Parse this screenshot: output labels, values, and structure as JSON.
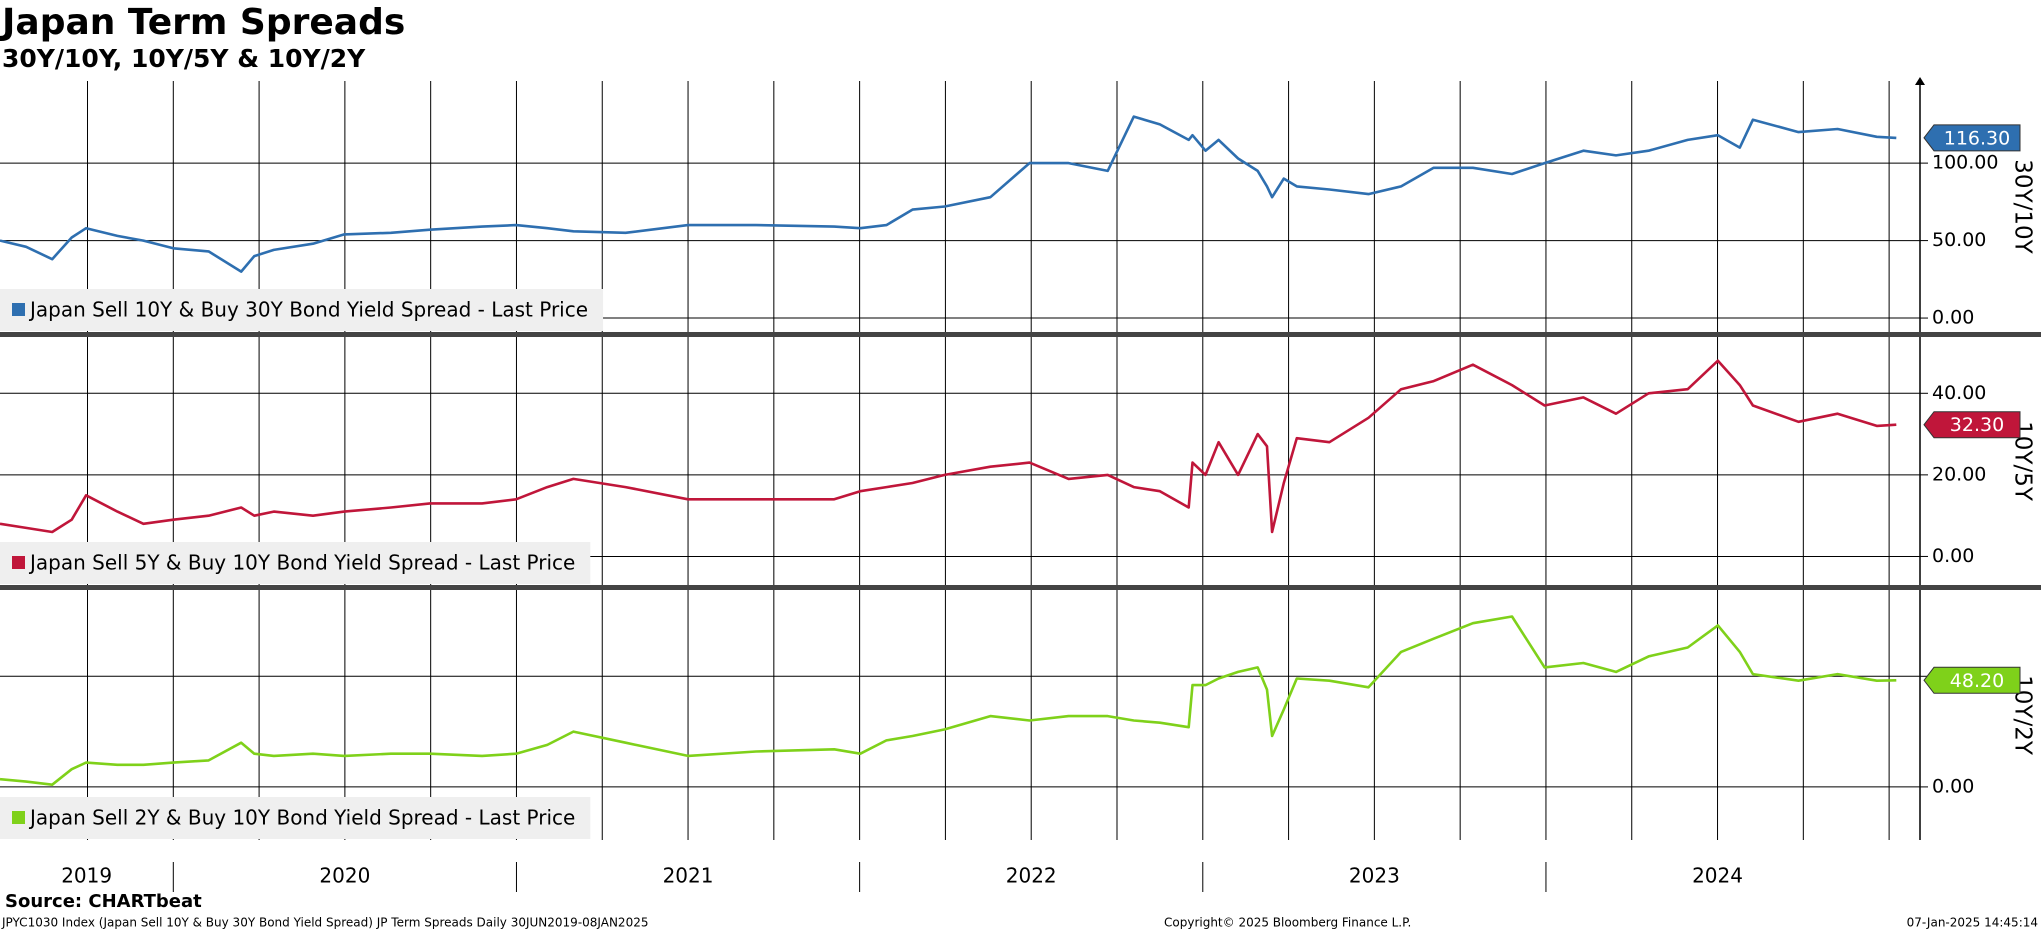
{
  "title": "Japan Term Spreads",
  "subtitle": "30Y/10Y, 10Y/5Y & 10Y/2Y",
  "x_axis": {
    "x": [
      2019.495,
      2019.571,
      2019.647,
      2019.704,
      2019.746,
      2019.837,
      2019.913,
      2020.0,
      2020.103,
      2020.198,
      2020.236,
      2020.293,
      2020.407,
      2020.498,
      2020.634,
      2020.748,
      2020.9,
      2020.999,
      2021.09,
      2021.166,
      2021.318,
      2021.5,
      2021.698,
      2021.926,
      2022.002,
      2022.078,
      2022.154,
      2022.248,
      2022.381,
      2022.495,
      2022.609,
      2022.723,
      2022.799,
      2022.875,
      2022.959,
      2022.97,
      2023.008,
      2023.046,
      2023.103,
      2023.16,
      2023.187,
      2023.202,
      2023.236,
      2023.274,
      2023.369,
      2023.483,
      2023.578,
      2023.673,
      2023.787,
      2023.901,
      2023.996,
      2024.109,
      2024.204,
      2024.299,
      2024.413,
      2024.501,
      2024.565,
      2024.603,
      2024.736,
      2024.85,
      2024.964,
      2025.021
    ],
    "xlim": [
      2019.495,
      2025.09
    ],
    "xticks": [
      {
        "value": 2019,
        "label": "2019"
      },
      {
        "value": 2020,
        "label": "2020"
      },
      {
        "value": 2021,
        "label": "2021"
      },
      {
        "value": 2022,
        "label": "2022"
      },
      {
        "value": 2023,
        "label": "2023"
      },
      {
        "value": 2024,
        "label": "2024"
      }
    ],
    "xgrid": [
      2019.75,
      2020,
      2020.25,
      2020.5,
      2020.75,
      2021,
      2021.25,
      2021.5,
      2021.75,
      2022,
      2022.25,
      2022.5,
      2022.75,
      2023,
      2023.25,
      2023.5,
      2023.75,
      2024,
      2024.25,
      2024.5,
      2024.75,
      2025
    ]
  },
  "chart_data": [
    {
      "type": "line",
      "ylabel": "30Y/10Y",
      "ylim": [
        -9,
        153
      ],
      "yticks": [
        {
          "value": 0,
          "label": "0.00"
        },
        {
          "value": 50,
          "label": "50.00"
        },
        {
          "value": 100,
          "label": "100.00"
        }
      ],
      "last_price": {
        "value": 116.3,
        "label": "116.30"
      },
      "series": [
        {
          "name": "Japan Sell 10Y & Buy 30Y Bond Yield Spread - Last Price",
          "color": "#2e6fb0",
          "values": [
            50,
            46,
            38,
            52,
            58,
            53,
            50,
            45,
            43,
            30,
            40,
            44,
            48,
            54,
            55,
            57,
            59,
            60,
            58,
            56,
            55,
            60,
            60,
            59,
            58,
            60,
            70,
            72,
            78,
            100,
            100,
            95,
            130,
            125,
            115,
            118,
            108,
            115,
            103,
            95,
            85,
            78,
            90,
            85,
            83,
            80,
            85,
            97,
            97,
            93,
            100,
            108,
            105,
            108,
            115,
            118,
            110,
            128,
            120,
            122,
            117,
            116.3
          ]
        }
      ]
    },
    {
      "type": "line",
      "ylabel": "10Y/5Y",
      "ylim": [
        -7,
        53.8
      ],
      "yticks": [
        {
          "value": 0,
          "label": "0.00"
        },
        {
          "value": 20,
          "label": "20.00"
        },
        {
          "value": 40,
          "label": "40.00"
        }
      ],
      "last_price": {
        "value": 32.3,
        "label": "32.30"
      },
      "series": [
        {
          "name": "Japan Sell 5Y & Buy 10Y Bond Yield Spread - Last Price",
          "color": "#c0163a",
          "values": [
            8,
            7,
            6,
            9,
            15,
            11,
            8,
            9,
            10,
            12,
            10,
            11,
            10,
            11,
            12,
            13,
            13,
            14,
            17,
            19,
            17,
            14,
            14,
            14,
            16,
            17,
            18,
            20,
            22,
            23,
            19,
            20,
            17,
            16,
            12,
            23,
            20,
            28,
            20,
            30,
            27,
            6,
            18,
            29,
            28,
            34,
            41,
            43,
            47,
            42,
            37,
            39,
            35,
            40,
            41,
            48,
            42,
            37,
            33,
            35,
            32,
            32.3
          ]
        }
      ]
    },
    {
      "type": "line",
      "ylabel": "10Y/2Y",
      "ylim": [
        -24,
        89
      ],
      "yticks": [
        {
          "value": 0,
          "label": "0.00"
        },
        {
          "value": 50,
          "label": "50.00"
        }
      ],
      "last_price": {
        "value": 48.2,
        "label": "48.20"
      },
      "series": [
        {
          "name": "Japan Sell 2Y & Buy 10Y Bond Yield Spread - Last Price",
          "color": "#7fd11a",
          "values": [
            3.5,
            2.4,
            1,
            8,
            11,
            10,
            10,
            11,
            12,
            20,
            15,
            14,
            15,
            14,
            15,
            15,
            14,
            15,
            19,
            25,
            20,
            14,
            16,
            17,
            15,
            21,
            23,
            26,
            32,
            30,
            32,
            32,
            30,
            29,
            27,
            46,
            46,
            49,
            52,
            54,
            44,
            23,
            35,
            49,
            48,
            45,
            61,
            67,
            74,
            77,
            54,
            56,
            52,
            59,
            63,
            73,
            61,
            51,
            48,
            51,
            48,
            48.2
          ]
        }
      ]
    }
  ],
  "footer": {
    "source": "Source: CHARTbeat",
    "description": "JPYC1030 Index (Japan Sell 10Y & Buy 30Y Bond Yield Spread) JP Term Spreads  Daily 30JUN2019-08JAN2025",
    "copyright": "Copyright© 2025 Bloomberg Finance L.P.",
    "timestamp": "07-Jan-2025 14:45:14"
  }
}
